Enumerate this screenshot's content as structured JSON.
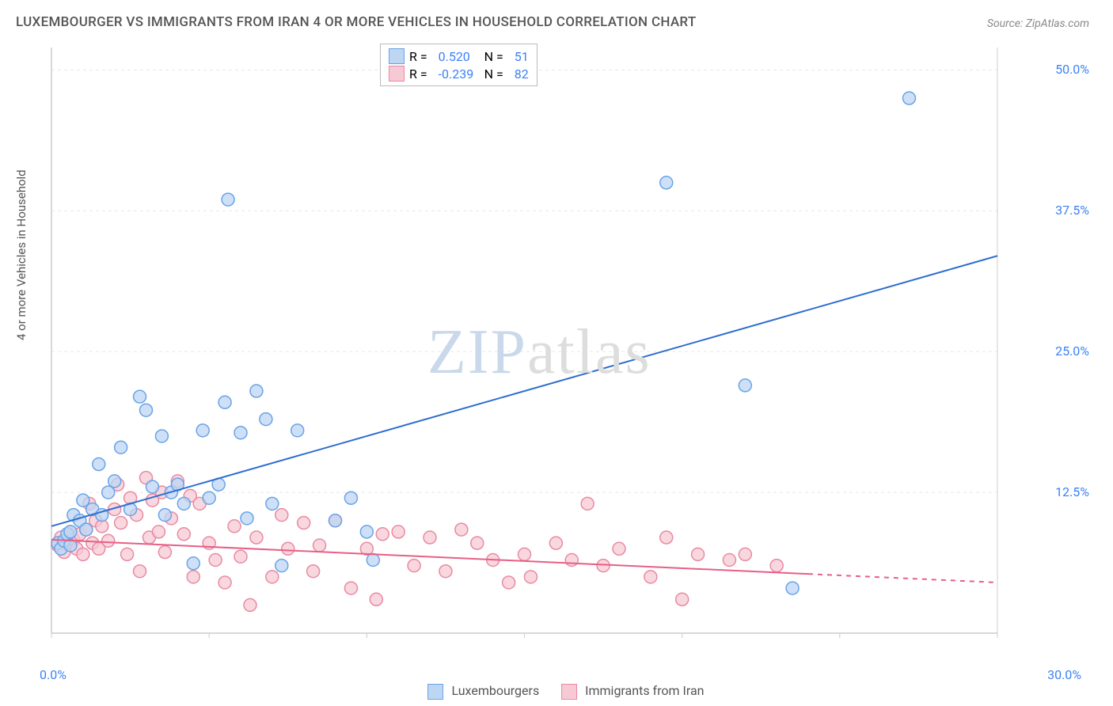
{
  "title": "LUXEMBOURGER VS IMMIGRANTS FROM IRAN 4 OR MORE VEHICLES IN HOUSEHOLD CORRELATION CHART",
  "source": "Source: ZipAtlas.com",
  "y_axis_label": "4 or more Vehicles in Household",
  "watermark": {
    "part1": "ZIP",
    "part2": "atlas"
  },
  "chart": {
    "type": "scatter",
    "background_color": "#ffffff",
    "grid_color": "#e8e8e8",
    "plot_border_color": "#cccccc",
    "xlim": [
      0,
      30
    ],
    "ylim": [
      0,
      52
    ],
    "x_ticks": [
      0,
      30
    ],
    "x_tick_labels": [
      "0.0%",
      "30.0%"
    ],
    "y_ticks": [
      12.5,
      25.0,
      37.5,
      50.0
    ],
    "y_tick_labels": [
      "12.5%",
      "25.0%",
      "37.5%",
      "50.0%"
    ],
    "y_label_fontsize": 15,
    "tick_label_color": "#3b82f6",
    "tick_label_fontsize": 16,
    "series": [
      {
        "name": "Luxembourgers",
        "marker_color_fill": "#bcd6f4",
        "marker_color_stroke": "#6aa3e6",
        "marker_radius": 8,
        "line_color": "#2f6fd0",
        "line_width": 2,
        "R": "0.520",
        "N": "51",
        "trend": {
          "x1": 0,
          "y1": 9.5,
          "x2": 30,
          "y2": 33.5,
          "solid_until_x": 30
        },
        "points": [
          [
            0.2,
            8.0
          ],
          [
            0.3,
            7.5
          ],
          [
            0.4,
            8.2
          ],
          [
            0.5,
            8.8
          ],
          [
            0.6,
            9.0
          ],
          [
            0.6,
            7.8
          ],
          [
            0.7,
            10.5
          ],
          [
            0.9,
            10.0
          ],
          [
            1.0,
            11.8
          ],
          [
            1.1,
            9.2
          ],
          [
            1.3,
            11.0
          ],
          [
            1.5,
            15.0
          ],
          [
            1.6,
            10.5
          ],
          [
            1.8,
            12.5
          ],
          [
            2.0,
            13.5
          ],
          [
            2.2,
            16.5
          ],
          [
            2.5,
            11.0
          ],
          [
            2.8,
            21.0
          ],
          [
            3.0,
            19.8
          ],
          [
            3.2,
            13.0
          ],
          [
            3.5,
            17.5
          ],
          [
            3.6,
            10.5
          ],
          [
            3.8,
            12.5
          ],
          [
            4.0,
            13.2
          ],
          [
            4.2,
            11.5
          ],
          [
            4.5,
            6.2
          ],
          [
            4.8,
            18.0
          ],
          [
            5.0,
            12.0
          ],
          [
            5.3,
            13.2
          ],
          [
            5.5,
            20.5
          ],
          [
            5.6,
            38.5
          ],
          [
            6.0,
            17.8
          ],
          [
            6.2,
            10.2
          ],
          [
            6.5,
            21.5
          ],
          [
            6.8,
            19.0
          ],
          [
            7.0,
            11.5
          ],
          [
            7.3,
            6.0
          ],
          [
            7.8,
            18.0
          ],
          [
            9.0,
            10.0
          ],
          [
            9.5,
            12.0
          ],
          [
            10.0,
            9.0
          ],
          [
            10.2,
            6.5
          ],
          [
            19.5,
            40.0
          ],
          [
            22.0,
            22.0
          ],
          [
            23.5,
            4.0
          ],
          [
            27.2,
            47.5
          ]
        ]
      },
      {
        "name": "Immigrants from Iran",
        "marker_color_fill": "#f7c9d4",
        "marker_color_stroke": "#e88aa2",
        "marker_radius": 8,
        "line_color": "#e85f86",
        "line_width": 2,
        "R": "-0.239",
        "N": "82",
        "trend": {
          "x1": 0,
          "y1": 8.3,
          "x2": 30,
          "y2": 4.5,
          "solid_until_x": 24
        },
        "points": [
          [
            0.2,
            7.8
          ],
          [
            0.3,
            8.5
          ],
          [
            0.4,
            7.2
          ],
          [
            0.5,
            8.0
          ],
          [
            0.6,
            9.0
          ],
          [
            0.7,
            8.3
          ],
          [
            0.8,
            7.5
          ],
          [
            0.9,
            8.8
          ],
          [
            1.0,
            7.0
          ],
          [
            1.1,
            9.2
          ],
          [
            1.2,
            11.5
          ],
          [
            1.3,
            8.0
          ],
          [
            1.4,
            10.0
          ],
          [
            1.5,
            7.5
          ],
          [
            1.6,
            9.5
          ],
          [
            1.8,
            8.2
          ],
          [
            2.0,
            11.0
          ],
          [
            2.1,
            13.2
          ],
          [
            2.2,
            9.8
          ],
          [
            2.4,
            7.0
          ],
          [
            2.5,
            12.0
          ],
          [
            2.7,
            10.5
          ],
          [
            2.8,
            5.5
          ],
          [
            3.0,
            13.8
          ],
          [
            3.1,
            8.5
          ],
          [
            3.2,
            11.8
          ],
          [
            3.4,
            9.0
          ],
          [
            3.5,
            12.5
          ],
          [
            3.6,
            7.2
          ],
          [
            3.8,
            10.2
          ],
          [
            4.0,
            13.5
          ],
          [
            4.2,
            8.8
          ],
          [
            4.4,
            12.2
          ],
          [
            4.5,
            5.0
          ],
          [
            4.7,
            11.5
          ],
          [
            5.0,
            8.0
          ],
          [
            5.2,
            6.5
          ],
          [
            5.5,
            4.5
          ],
          [
            5.8,
            9.5
          ],
          [
            6.0,
            6.8
          ],
          [
            6.3,
            2.5
          ],
          [
            6.5,
            8.5
          ],
          [
            7.0,
            5.0
          ],
          [
            7.3,
            10.5
          ],
          [
            7.5,
            7.5
          ],
          [
            8.0,
            9.8
          ],
          [
            8.3,
            5.5
          ],
          [
            8.5,
            7.8
          ],
          [
            9.0,
            10.0
          ],
          [
            9.5,
            4.0
          ],
          [
            10.0,
            7.5
          ],
          [
            10.3,
            3.0
          ],
          [
            10.5,
            8.8
          ],
          [
            11.0,
            9.0
          ],
          [
            11.5,
            6.0
          ],
          [
            12.0,
            8.5
          ],
          [
            12.5,
            5.5
          ],
          [
            13.0,
            9.2
          ],
          [
            13.5,
            8.0
          ],
          [
            14.0,
            6.5
          ],
          [
            14.5,
            4.5
          ],
          [
            15.0,
            7.0
          ],
          [
            15.2,
            5.0
          ],
          [
            16.0,
            8.0
          ],
          [
            16.5,
            6.5
          ],
          [
            17.0,
            11.5
          ],
          [
            17.5,
            6.0
          ],
          [
            18.0,
            7.5
          ],
          [
            19.0,
            5.0
          ],
          [
            19.5,
            8.5
          ],
          [
            20.0,
            3.0
          ],
          [
            20.5,
            7.0
          ],
          [
            21.5,
            6.5
          ],
          [
            22.0,
            7.0
          ],
          [
            23.0,
            6.0
          ]
        ]
      }
    ]
  },
  "legend_top": {
    "label_R": "R =",
    "label_N": "N ="
  },
  "legend_bottom": {
    "items": [
      "Luxembourgers",
      "Immigrants from Iran"
    ]
  }
}
